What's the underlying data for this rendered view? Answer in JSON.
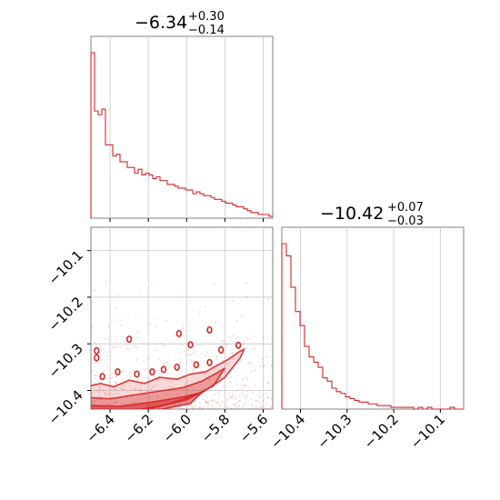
{
  "chart_data": {
    "type": "corner",
    "color": "#d62728",
    "params": [
      {
        "title": {
          "median": "−6.34",
          "plus": "+0.30",
          "minus": "−0.14"
        },
        "range": [
          -6.5,
          -5.55
        ],
        "ticks": [
          {
            "value": -6.4,
            "label": "−6.4"
          },
          {
            "value": -6.2,
            "label": "−6.2"
          },
          {
            "value": -6.0,
            "label": "−6.0"
          },
          {
            "value": -5.8,
            "label": "−5.8"
          },
          {
            "value": -5.6,
            "label": "−5.6"
          }
        ],
        "hist_edges_range": [
          -6.5,
          -5.55
        ],
        "hist_counts": [
          88,
          57,
          55,
          58,
          39,
          39,
          33,
          34,
          30,
          30,
          27,
          27,
          24,
          26,
          23,
          24,
          23,
          21,
          22,
          20,
          20,
          18,
          18,
          17,
          16,
          16,
          15,
          15,
          13,
          14,
          13,
          12,
          12,
          11,
          10,
          10,
          9,
          8,
          8,
          7,
          6,
          6,
          5,
          4,
          3,
          3,
          2,
          2,
          2,
          1
        ]
      },
      {
        "title": {
          "median": "−10.42",
          "plus": "+0.07",
          "minus": "−0.03"
        },
        "range": [
          -10.44,
          -10.05
        ],
        "ticks": [
          {
            "value": -10.4,
            "label": "−10.4"
          },
          {
            "value": -10.3,
            "label": "−10.3"
          },
          {
            "value": -10.2,
            "label": "−10.2"
          },
          {
            "value": -10.1,
            "label": "−10.1"
          }
        ],
        "hist_edges_range": [
          -10.44,
          -10.05
        ],
        "hist_counts": [
          95,
          88,
          70,
          56,
          48,
          36,
          30,
          27,
          24,
          18,
          16,
          12,
          10,
          9,
          7,
          6,
          5,
          4,
          4,
          3,
          3,
          2,
          2,
          2,
          1,
          1,
          1,
          1,
          1,
          0,
          1,
          0,
          1,
          0,
          0,
          0,
          0,
          1,
          0,
          0
        ]
      }
    ],
    "joint_ticks_y": [
      {
        "value": -10.1,
        "label": "−10.1"
      },
      {
        "value": -10.2,
        "label": "−10.2"
      },
      {
        "value": -10.3,
        "label": "−10.3"
      },
      {
        "value": -10.4,
        "label": "−10.4"
      }
    ],
    "grid": true
  }
}
